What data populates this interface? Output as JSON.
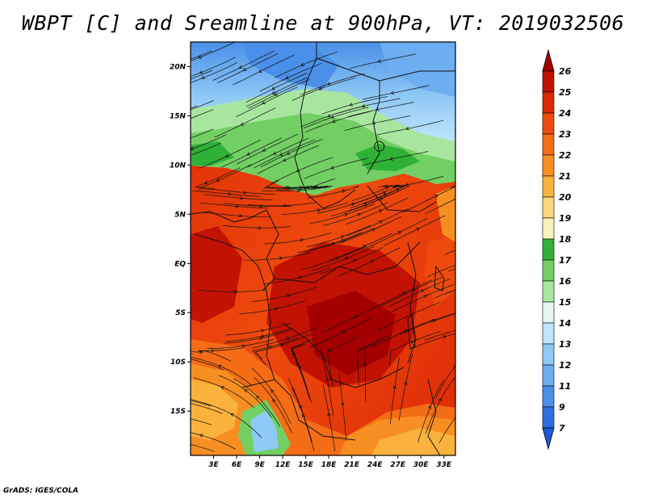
{
  "title": "WBPT [C] and Sreamline at 900hPa, VT: 2019032506",
  "footer": "GrADS: IGES/COLA",
  "map": {
    "lat_labels": [
      "20N",
      "15N",
      "10N",
      "5N",
      "EQ",
      "5S",
      "10S",
      "15S"
    ],
    "lon_labels": [
      "3E",
      "6E",
      "9E",
      "12E",
      "15E",
      "18E",
      "21E",
      "24E",
      "27E",
      "30E",
      "33E"
    ],
    "lat_range": [
      -19.5,
      22.5
    ],
    "lon_range": [
      0,
      34.5
    ],
    "field": "Wet-bulb potential temperature (C) with streamlines"
  },
  "colorbar": {
    "levels": [
      "26",
      "25",
      "24",
      "23",
      "22",
      "21",
      "20",
      "19",
      "18",
      "17",
      "16",
      "15",
      "14",
      "13",
      "12",
      "11",
      "9",
      "7"
    ],
    "colors": [
      "#a40000",
      "#c21203",
      "#dd2a06",
      "#ee4a0e",
      "#f46c16",
      "#f78e22",
      "#fab23c",
      "#fcd67a",
      "#f8f3b8",
      "#2fb036",
      "#73cf64",
      "#a8e6a0",
      "#e6f7f2",
      "#bfe4fb",
      "#8fc9f5",
      "#6caef0",
      "#4a8fe8",
      "#2d6fe0",
      "#1f5ad6"
    ]
  }
}
